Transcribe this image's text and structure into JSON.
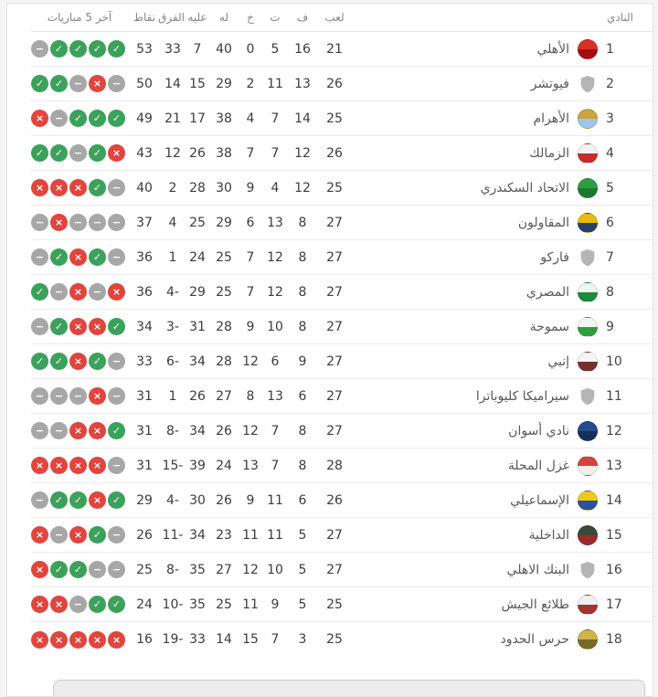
{
  "colors": {
    "win": "#3ca15a",
    "loss": "#e0453e",
    "draw": "#a7a7a7",
    "placeholder_shield": "#b5b5b5"
  },
  "icons": {
    "win": "✓",
    "loss": "×",
    "draw": "−",
    "placeholder": "shield-icon"
  },
  "table": {
    "headers": {
      "club": "النادي",
      "played": "لعب",
      "won": "ف",
      "drawn": "ت",
      "lost": "خ",
      "gf": "له",
      "ga": "عليه",
      "gd": "الفرق",
      "points": "نقاط",
      "last5": "آخر 5 مباريات"
    },
    "rows": [
      {
        "rank": 1,
        "name": "الأهلي",
        "logo": {
          "type": "badge",
          "colors": [
            "#d93025",
            "#a50e0e"
          ]
        },
        "played": 21,
        "won": 16,
        "drawn": 5,
        "lost": 0,
        "gf": 40,
        "ga": 7,
        "gd": 33,
        "points": 53,
        "last5": [
          "draw",
          "win",
          "win",
          "win",
          "win"
        ]
      },
      {
        "rank": 2,
        "name": "فيوتشر",
        "logo": {
          "type": "placeholder"
        },
        "played": 26,
        "won": 13,
        "drawn": 11,
        "lost": 2,
        "gf": 29,
        "ga": 15,
        "gd": 14,
        "points": 50,
        "last5": [
          "win",
          "win",
          "draw",
          "loss",
          "draw"
        ]
      },
      {
        "rank": 3,
        "name": "الأهرام",
        "logo": {
          "type": "badge",
          "colors": [
            "#caa53d",
            "#9fc5e8"
          ]
        },
        "played": 25,
        "won": 14,
        "drawn": 7,
        "lost": 4,
        "gf": 38,
        "ga": 17,
        "gd": 21,
        "points": 49,
        "last5": [
          "loss",
          "draw",
          "win",
          "win",
          "win"
        ]
      },
      {
        "rank": 4,
        "name": "الزمالك",
        "logo": {
          "type": "badge",
          "colors": [
            "#f2f2f2",
            "#cc2b2b"
          ]
        },
        "played": 26,
        "won": 12,
        "drawn": 7,
        "lost": 7,
        "gf": 38,
        "ga": 26,
        "gd": 12,
        "points": 43,
        "last5": [
          "win",
          "win",
          "draw",
          "win",
          "loss"
        ]
      },
      {
        "rank": 5,
        "name": "الاتحاد السكندري",
        "logo": {
          "type": "badge",
          "colors": [
            "#2f9e41",
            "#1c7a2e"
          ]
        },
        "played": 25,
        "won": 12,
        "drawn": 4,
        "lost": 9,
        "gf": 30,
        "ga": 28,
        "gd": 2,
        "points": 40,
        "last5": [
          "loss",
          "loss",
          "loss",
          "win",
          "draw"
        ]
      },
      {
        "rank": 6,
        "name": "المقاولون",
        "logo": {
          "type": "badge",
          "colors": [
            "#e8b90f",
            "#27406e"
          ]
        },
        "played": 27,
        "won": 8,
        "drawn": 13,
        "lost": 6,
        "gf": 29,
        "ga": 25,
        "gd": 4,
        "points": 37,
        "last5": [
          "draw",
          "loss",
          "draw",
          "draw",
          "draw"
        ]
      },
      {
        "rank": 7,
        "name": "فاركو",
        "logo": {
          "type": "placeholder"
        },
        "played": 27,
        "won": 8,
        "drawn": 12,
        "lost": 7,
        "gf": 25,
        "ga": 24,
        "gd": 1,
        "points": 36,
        "last5": [
          "draw",
          "win",
          "loss",
          "win",
          "draw"
        ]
      },
      {
        "rank": 8,
        "name": "المصري",
        "logo": {
          "type": "badge",
          "colors": [
            "#eef7ee",
            "#1e8a3c"
          ]
        },
        "played": 27,
        "won": 8,
        "drawn": 12,
        "lost": 7,
        "gf": 25,
        "ga": 29,
        "gd": -4,
        "points": 36,
        "last5": [
          "win",
          "draw",
          "loss",
          "draw",
          "loss"
        ]
      },
      {
        "rank": 9,
        "name": "سموحة",
        "logo": {
          "type": "badge",
          "colors": [
            "#f5f5f5",
            "#2f9e41"
          ]
        },
        "played": 27,
        "won": 8,
        "drawn": 10,
        "lost": 9,
        "gf": 28,
        "ga": 31,
        "gd": -3,
        "points": 34,
        "last5": [
          "draw",
          "win",
          "loss",
          "loss",
          "win"
        ]
      },
      {
        "rank": 10,
        "name": "إنبي",
        "logo": {
          "type": "badge",
          "colors": [
            "#f5f5f5",
            "#7a2e2e"
          ]
        },
        "played": 27,
        "won": 9,
        "drawn": 6,
        "lost": 12,
        "gf": 28,
        "ga": 34,
        "gd": -6,
        "points": 33,
        "last5": [
          "win",
          "win",
          "loss",
          "win",
          "draw"
        ]
      },
      {
        "rank": 11,
        "name": "سيراميكا كليوباترا",
        "logo": {
          "type": "placeholder"
        },
        "played": 27,
        "won": 6,
        "drawn": 13,
        "lost": 8,
        "gf": 27,
        "ga": 26,
        "gd": 1,
        "points": 31,
        "last5": [
          "draw",
          "draw",
          "draw",
          "loss",
          "draw"
        ]
      },
      {
        "rank": 12,
        "name": "نادي أسوان",
        "logo": {
          "type": "badge",
          "colors": [
            "#274b8f",
            "#16305e"
          ]
        },
        "played": 27,
        "won": 8,
        "drawn": 7,
        "lost": 12,
        "gf": 26,
        "ga": 34,
        "gd": -8,
        "points": 31,
        "last5": [
          "draw",
          "draw",
          "loss",
          "loss",
          "win"
        ]
      },
      {
        "rank": 13,
        "name": "غزل المحلة",
        "logo": {
          "type": "badge",
          "colors": [
            "#d64040",
            "#f0f0f0"
          ]
        },
        "played": 28,
        "won": 8,
        "drawn": 7,
        "lost": 13,
        "gf": 24,
        "ga": 39,
        "gd": -15,
        "points": 31,
        "last5": [
          "loss",
          "loss",
          "loss",
          "loss",
          "draw"
        ]
      },
      {
        "rank": 14,
        "name": "الإسماعيلي",
        "logo": {
          "type": "badge",
          "colors": [
            "#f2c718",
            "#2a52a0"
          ]
        },
        "played": 26,
        "won": 6,
        "drawn": 11,
        "lost": 9,
        "gf": 26,
        "ga": 30,
        "gd": -4,
        "points": 29,
        "last5": [
          "draw",
          "win",
          "win",
          "loss",
          "win"
        ]
      },
      {
        "rank": 15,
        "name": "الداخلية",
        "logo": {
          "type": "badge",
          "colors": [
            "#3a4a3a",
            "#9e2a2a"
          ]
        },
        "played": 27,
        "won": 5,
        "drawn": 11,
        "lost": 11,
        "gf": 23,
        "ga": 34,
        "gd": -11,
        "points": 26,
        "last5": [
          "loss",
          "draw",
          "loss",
          "win",
          "draw"
        ]
      },
      {
        "rank": 16,
        "name": "البنك الاهلي",
        "logo": {
          "type": "placeholder"
        },
        "played": 27,
        "won": 5,
        "drawn": 10,
        "lost": 12,
        "gf": 27,
        "ga": 35,
        "gd": -8,
        "points": 25,
        "last5": [
          "loss",
          "win",
          "win",
          "draw",
          "draw"
        ]
      },
      {
        "rank": 17,
        "name": "طلائع الجيش",
        "logo": {
          "type": "badge",
          "colors": [
            "#f0f0f0",
            "#a83232"
          ]
        },
        "played": 25,
        "won": 5,
        "drawn": 9,
        "lost": 11,
        "gf": 25,
        "ga": 35,
        "gd": -10,
        "points": 24,
        "last5": [
          "loss",
          "loss",
          "draw",
          "win",
          "win"
        ]
      },
      {
        "rank": 18,
        "name": "حرس الحدود",
        "logo": {
          "type": "badge",
          "colors": [
            "#cdb54a",
            "#7a6a2a"
          ]
        },
        "played": 25,
        "won": 3,
        "drawn": 7,
        "lost": 15,
        "gf": 14,
        "ga": 33,
        "gd": -19,
        "points": 16,
        "last5": [
          "loss",
          "loss",
          "loss",
          "loss",
          "loss"
        ]
      }
    ]
  }
}
